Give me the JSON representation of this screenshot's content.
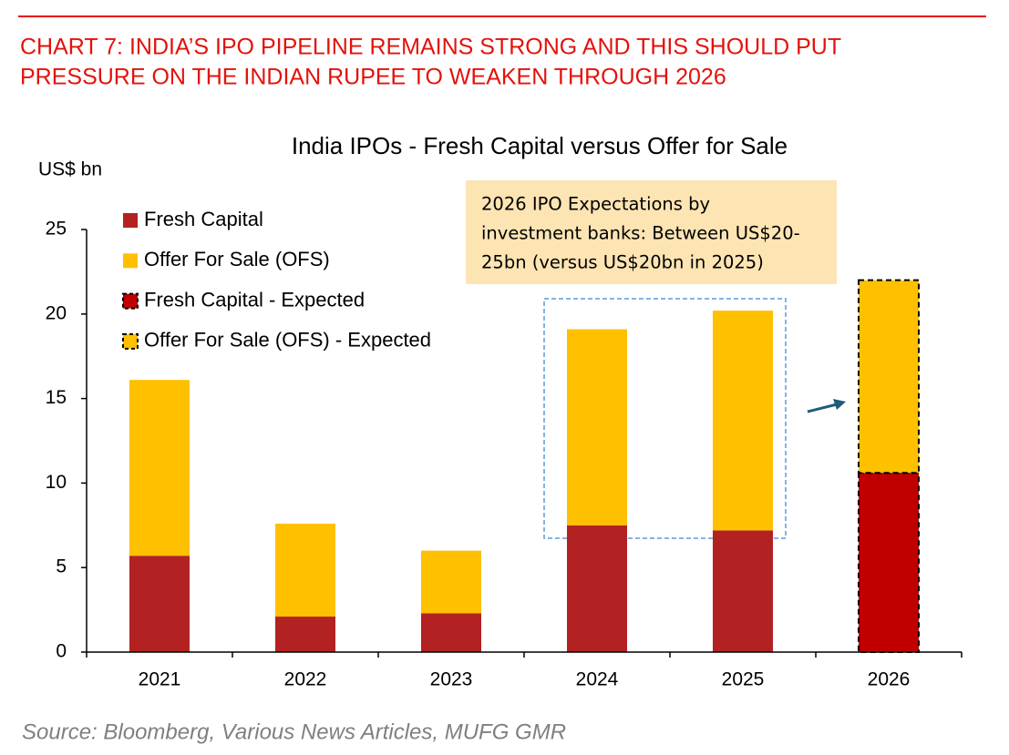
{
  "chart_data": {
    "type": "stacked_bar",
    "header": [
      "CHART 7: INDIA’S IPO PIPELINE REMAINS STRONG AND THIS SHOULD PUT",
      "PRESSURE ON THE INDIAN RUPEE TO WEAKEN THROUGH 2026"
    ],
    "title": "India IPOs - Fresh Capital versus Offer for Sale",
    "y_label": "US$ bn",
    "categories": [
      "2021",
      "2022",
      "2023",
      "2024",
      "2025",
      "2026"
    ],
    "series": [
      {
        "name": "Fresh Capital",
        "color": "#b22222",
        "border": "none",
        "values": [
          5.7,
          2.1,
          2.3,
          7.5,
          7.2,
          null
        ]
      },
      {
        "name": "Offer For Sale (OFS)",
        "color": "#ffc000",
        "border": "none",
        "values": [
          10.4,
          5.5,
          3.7,
          11.6,
          13.0,
          null
        ]
      },
      {
        "name": "Fresh Capital - Expected",
        "color": "#c00000",
        "border": "dashed",
        "values": [
          null,
          null,
          null,
          null,
          null,
          10.6
        ]
      },
      {
        "name": "Offer For Sale (OFS) - Expected",
        "color": "#ffc000",
        "border": "dashed",
        "values": [
          null,
          null,
          null,
          null,
          null,
          11.4
        ]
      }
    ],
    "ylim": [
      0,
      25
    ],
    "yticks": [
      0,
      5,
      10,
      15,
      20,
      25
    ],
    "annotation": [
      "2026 IPO Expectations by",
      "investment banks: Between US$20-",
      "25bn (versus US$20bn in 2025)"
    ],
    "source": "Source: Bloomberg, Various News Articles, MUFG GMR"
  }
}
